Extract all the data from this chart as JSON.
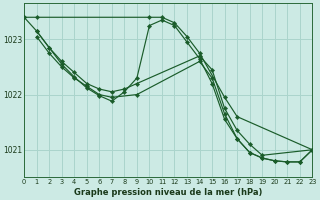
{
  "title": "Graphe pression niveau de la mer (hPa)",
  "background_color": "#cceae4",
  "grid_color": "#aad4cc",
  "line_color": "#1a5c2a",
  "xlim": [
    0,
    23
  ],
  "ylim": [
    1020.5,
    1023.65
  ],
  "yticks": [
    1021,
    1022,
    1023
  ],
  "xticks": [
    0,
    1,
    2,
    3,
    4,
    5,
    6,
    7,
    8,
    9,
    10,
    11,
    12,
    13,
    14,
    15,
    16,
    17,
    18,
    19,
    20,
    21,
    22,
    23
  ],
  "series": [
    {
      "x": [
        0,
        1,
        10,
        11,
        12,
        13,
        14,
        16,
        17,
        23
      ],
      "y": [
        1023.4,
        1023.4,
        1023.4,
        1023.4,
        1023.3,
        1023.05,
        1022.75,
        1021.95,
        1021.6,
        1021.0
      ]
    },
    {
      "x": [
        1,
        2,
        3,
        4,
        5,
        6,
        7,
        8,
        9,
        14,
        15,
        16,
        17,
        18,
        19,
        23
      ],
      "y": [
        1023.15,
        1022.85,
        1022.6,
        1022.4,
        1022.2,
        1022.1,
        1022.05,
        1022.1,
        1022.2,
        1022.7,
        1022.45,
        1021.75,
        1021.35,
        1021.1,
        1020.9,
        1021.0
      ]
    },
    {
      "x": [
        1,
        2,
        3,
        4,
        5,
        6,
        7,
        9,
        14,
        15,
        16,
        17,
        18,
        19,
        20,
        21,
        22,
        23
      ],
      "y": [
        1023.05,
        1022.75,
        1022.5,
        1022.3,
        1022.15,
        1022.0,
        1021.95,
        1022.0,
        1022.6,
        1022.3,
        1021.65,
        1021.2,
        1020.95,
        1020.85,
        1020.8,
        1020.78,
        1020.78,
        1021.0
      ]
    },
    {
      "x": [
        0,
        1,
        2,
        3,
        4,
        5,
        6,
        7,
        8,
        9,
        10,
        11,
        12,
        13,
        14,
        15,
        16,
        17,
        18,
        19,
        20,
        21,
        22,
        23
      ],
      "y": [
        1023.4,
        1023.15,
        1022.85,
        1022.55,
        1022.32,
        1022.12,
        1021.98,
        1021.88,
        1022.05,
        1022.3,
        1023.25,
        1023.35,
        1023.25,
        1022.95,
        1022.65,
        1022.2,
        1021.55,
        1021.2,
        1020.95,
        1020.85,
        1020.8,
        1020.78,
        1020.78,
        1021.0
      ]
    }
  ]
}
